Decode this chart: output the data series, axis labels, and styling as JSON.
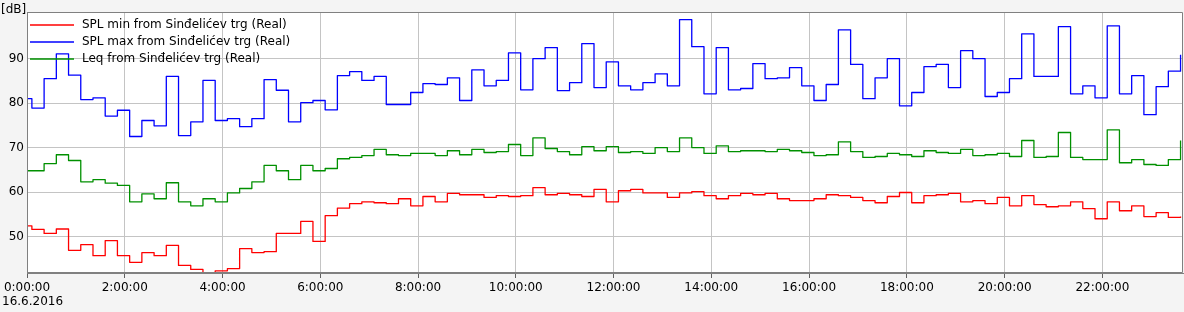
{
  "chart_data": {
    "type": "step",
    "ylabel": "[dB]",
    "annotations": [
      "16.6.2016"
    ],
    "x": [
      0,
      0.1,
      0.35,
      0.6,
      0.85,
      1.1,
      1.35,
      1.6,
      1.85,
      2.1,
      2.35,
      2.6,
      2.85,
      3.1,
      3.35,
      3.6,
      3.85,
      4.1,
      4.35,
      4.6,
      4.85,
      5.1,
      5.35,
      5.6,
      5.85,
      6.1,
      6.35,
      6.6,
      6.85,
      7.1,
      7.35,
      7.6,
      7.85,
      8.1,
      8.35,
      8.6,
      8.85,
      9.1,
      9.35,
      9.6,
      9.85,
      10.1,
      10.35,
      10.6,
      10.85,
      11.1,
      11.35,
      11.6,
      11.85,
      12.1,
      12.35,
      12.6,
      12.85,
      13.1,
      13.35,
      13.6,
      13.85,
      14.1,
      14.35,
      14.6,
      14.85,
      15.1,
      15.35,
      15.6,
      15.85,
      16.1,
      16.35,
      16.6,
      16.85,
      17.1,
      17.35,
      17.6,
      17.85,
      18.1,
      18.35,
      18.6,
      18.85,
      19.1,
      19.35,
      19.6,
      19.85,
      20.1,
      20.35,
      20.6,
      20.85,
      21.1,
      21.35,
      21.6,
      21.85,
      22.1,
      22.35,
      22.6,
      22.85,
      23.1,
      23.35,
      23.6
    ],
    "series": [
      {
        "name": "SPL min from Sinđelićev trg (Real)",
        "color": "#ff0000",
        "values": [
          52.4,
          51.6,
          50.7,
          51.7,
          46.9,
          48.2,
          45.7,
          49.1,
          45.7,
          44.2,
          46.4,
          45.7,
          48.0,
          43.5,
          42.6,
          41.9,
          42.3,
          42.8,
          47.3,
          46.4,
          46.6,
          50.7,
          50.7,
          53.4,
          48.9,
          54.7,
          56.4,
          57.4,
          57.8,
          57.6,
          57.4,
          58.5,
          56.9,
          59.0,
          57.8,
          59.7,
          59.4,
          59.4,
          58.8,
          59.2,
          59.0,
          59.2,
          61.0,
          59.4,
          59.7,
          59.4,
          59.0,
          60.6,
          57.8,
          60.3,
          60.6,
          59.8,
          59.8,
          58.8,
          59.8,
          60.1,
          59.2,
          58.5,
          59.2,
          59.7,
          59.4,
          59.7,
          58.5,
          58.1,
          58.1,
          58.5,
          59.4,
          59.2,
          58.8,
          58.1,
          57.6,
          59.0,
          59.9,
          57.6,
          59.2,
          59.4,
          59.7,
          57.8,
          58.1,
          57.4,
          58.8,
          56.9,
          59.2,
          57.2,
          56.7,
          56.9,
          57.8,
          56.3,
          54.0,
          57.8,
          55.8,
          56.9,
          54.5,
          55.4,
          54.3,
          54.5
        ]
      },
      {
        "name": "SPL max from Sinđelićev trg (Real)",
        "color": "#0000ff",
        "values": [
          81.0,
          78.9,
          85.5,
          91.1,
          86.3,
          80.8,
          81.2,
          77.1,
          78.4,
          72.5,
          76.1,
          74.9,
          86.0,
          72.7,
          75.8,
          85.1,
          76.1,
          76.5,
          74.7,
          76.5,
          85.3,
          82.9,
          75.8,
          80.1,
          80.6,
          78.5,
          86.2,
          87.1,
          85.1,
          86.0,
          79.7,
          79.7,
          82.4,
          84.4,
          84.2,
          85.7,
          80.6,
          87.5,
          83.9,
          85.1,
          91.3,
          83.0,
          90.0,
          92.5,
          82.8,
          84.6,
          93.4,
          83.5,
          89.3,
          83.9,
          83.0,
          84.6,
          86.6,
          83.9,
          98.8,
          92.7,
          82.1,
          92.5,
          83.0,
          83.3,
          88.9,
          85.5,
          85.7,
          88.0,
          83.9,
          80.6,
          84.2,
          96.5,
          88.7,
          81.0,
          85.7,
          90.0,
          79.4,
          82.4,
          88.2,
          88.7,
          83.5,
          91.8,
          90.0,
          81.5,
          82.4,
          85.5,
          95.6,
          86.0,
          86.0,
          97.2,
          82.1,
          83.9,
          81.2,
          97.4,
          82.1,
          86.2,
          77.4,
          83.7,
          87.2,
          90.9
        ]
      },
      {
        "name": "Leq from Sinđelićev trg (Real)",
        "color": "#009000",
        "values": [
          64.8,
          64.8,
          66.4,
          68.4,
          67.1,
          62.3,
          62.8,
          62.0,
          61.5,
          57.8,
          59.6,
          58.5,
          62.1,
          57.8,
          56.9,
          58.5,
          57.8,
          59.8,
          60.8,
          62.3,
          66.0,
          64.8,
          62.8,
          66.0,
          64.8,
          65.3,
          67.5,
          67.8,
          68.2,
          69.6,
          68.4,
          68.2,
          68.7,
          68.7,
          68.2,
          69.3,
          68.4,
          69.6,
          68.9,
          69.1,
          70.7,
          68.2,
          72.2,
          69.8,
          69.1,
          68.4,
          70.2,
          69.3,
          70.2,
          68.9,
          69.1,
          68.7,
          70.0,
          69.1,
          72.2,
          70.0,
          68.7,
          70.4,
          69.1,
          69.3,
          69.3,
          69.1,
          69.6,
          69.3,
          68.9,
          68.2,
          68.4,
          71.3,
          69.1,
          67.8,
          68.0,
          68.7,
          68.4,
          68.0,
          69.3,
          68.9,
          68.7,
          69.6,
          68.2,
          68.4,
          68.7,
          68.0,
          71.6,
          67.8,
          68.0,
          73.4,
          67.8,
          67.3,
          67.3,
          74.0,
          66.6,
          67.3,
          66.2,
          66.0,
          67.3,
          71.6
        ]
      }
    ],
    "xlim": [
      0,
      23.65
    ],
    "xticks": [
      {
        "value": 0,
        "label": "0:00:00"
      },
      {
        "value": 2,
        "label": "2:00:00"
      },
      {
        "value": 4,
        "label": "4:00:00"
      },
      {
        "value": 6,
        "label": "6:00:00"
      },
      {
        "value": 8,
        "label": "8:00:00"
      },
      {
        "value": 10,
        "label": "10:00:00"
      },
      {
        "value": 12,
        "label": "12:00:00"
      },
      {
        "value": 14,
        "label": "14:00:00"
      },
      {
        "value": 16,
        "label": "16:00:00"
      },
      {
        "value": 18,
        "label": "18:00:00"
      },
      {
        "value": 20,
        "label": "20:00:00"
      },
      {
        "value": 22,
        "label": "22:00:00"
      }
    ],
    "ylim": [
      41.8,
      100.5
    ],
    "yticks": [
      50,
      60,
      70,
      80,
      90
    ],
    "grid": true,
    "legend": "top left"
  }
}
